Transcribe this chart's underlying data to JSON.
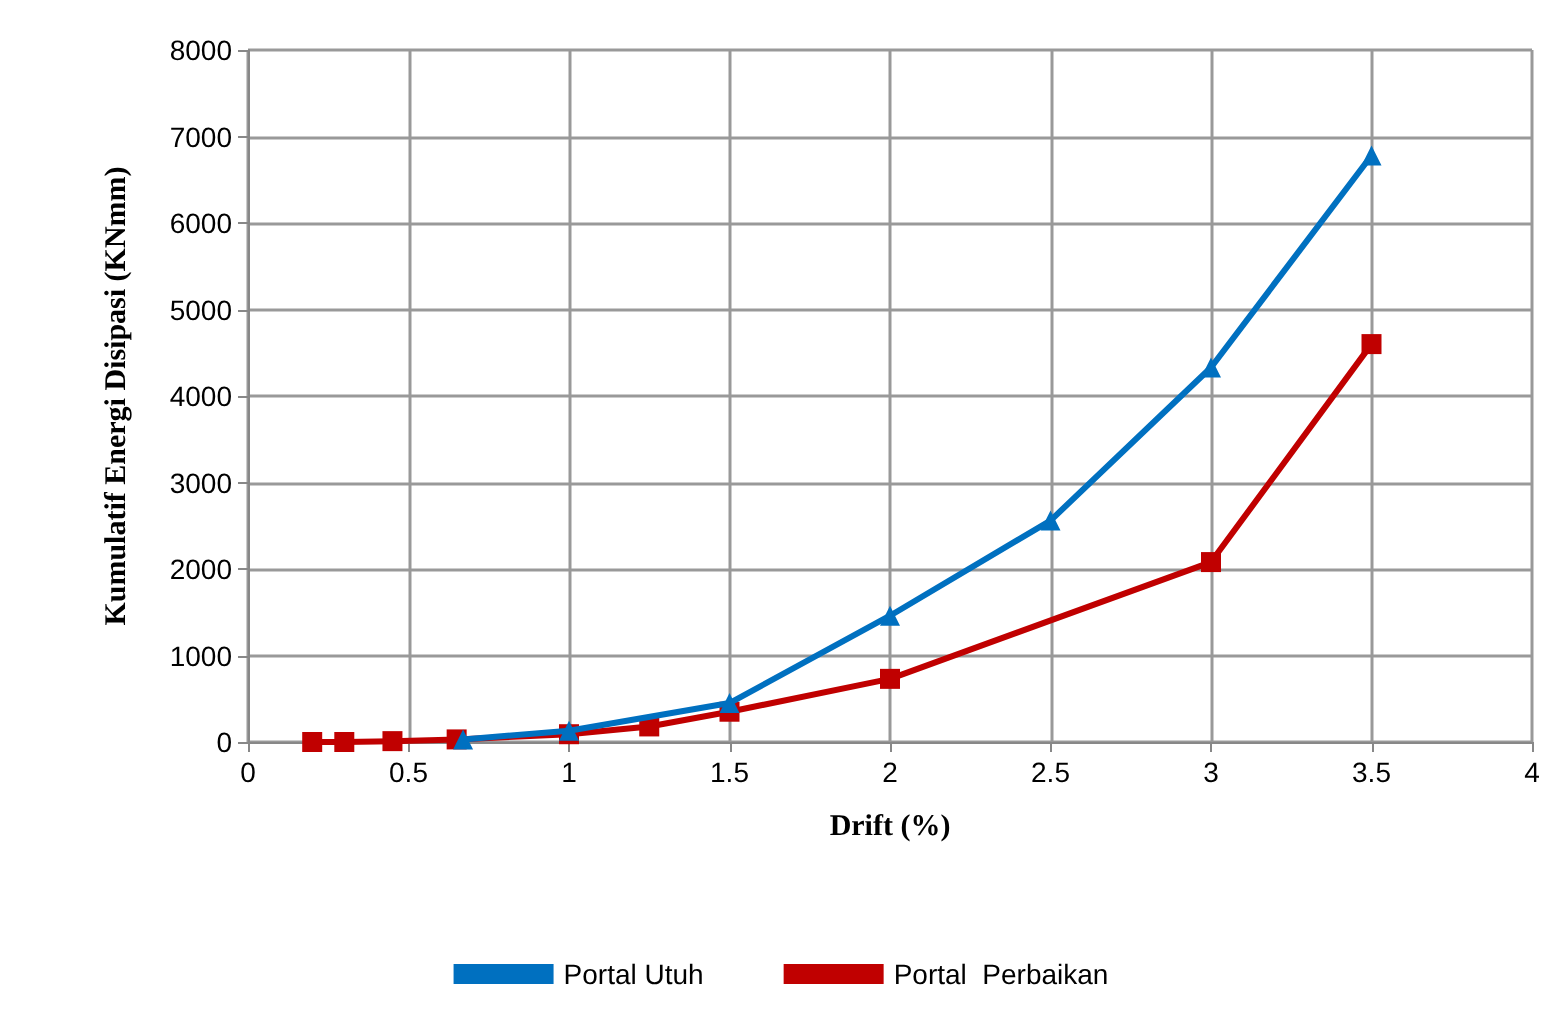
{
  "chart_data": {
    "type": "line",
    "xlabel": "Drift (%)",
    "ylabel": "Kumulatif Energi Disipasi (KNmm)",
    "series": [
      {
        "name": "Portal Utuh",
        "color": "#0070c0",
        "marker": "triangle",
        "x": [
          0.67,
          1,
          1.5,
          2,
          2.5,
          3,
          3.5
        ],
        "values": [
          30,
          130,
          450,
          1460,
          2560,
          4330,
          6780
        ]
      },
      {
        "name": "Portal  Perbaikan",
        "color": "#c00000",
        "marker": "square",
        "x": [
          0.2,
          0.3,
          0.45,
          0.65,
          1,
          1.25,
          1.5,
          2,
          3,
          3.5
        ],
        "values": [
          0,
          0,
          10,
          30,
          90,
          180,
          350,
          730,
          2080,
          4600
        ]
      }
    ],
    "xlim": [
      0,
      4
    ],
    "xticks": [
      0,
      0.5,
      1,
      1.5,
      2,
      2.5,
      3,
      3.5,
      4
    ],
    "ylim": [
      0,
      8000
    ],
    "yticks": [
      0,
      1000,
      2000,
      3000,
      4000,
      5000,
      6000,
      7000,
      8000
    ],
    "grid": true,
    "legend": "bottom"
  }
}
